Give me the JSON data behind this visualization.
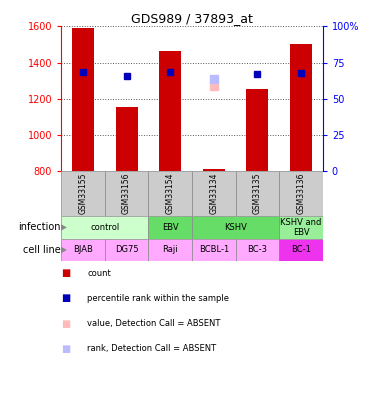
{
  "title": "GDS989 / 37893_at",
  "samples": [
    "GSM33155",
    "GSM33156",
    "GSM33154",
    "GSM33134",
    "GSM33135",
    "GSM33136"
  ],
  "counts": [
    1590,
    1155,
    1465,
    810,
    1255,
    1505
  ],
  "percentile_ranks": [
    68.5,
    65.5,
    68.5,
    null,
    67.0,
    67.5
  ],
  "absent_value": [
    null,
    null,
    null,
    1270,
    null,
    null
  ],
  "absent_rank": [
    null,
    null,
    null,
    63.5,
    null,
    null
  ],
  "cell_lines": [
    "BJAB",
    "DG75",
    "Raji",
    "BCBL-1",
    "BC-3",
    "BC-1"
  ],
  "cell_colors": [
    "#ffaaff",
    "#ffaaff",
    "#ffaaff",
    "#ffaaff",
    "#ffaaff",
    "#ee33ee"
  ],
  "inf_groups": [
    {
      "label": "control",
      "start": 0,
      "end": 2,
      "color": "#ccffcc"
    },
    {
      "label": "EBV",
      "start": 2,
      "end": 3,
      "color": "#66dd66"
    },
    {
      "label": "KSHV",
      "start": 3,
      "end": 5,
      "color": "#66dd66"
    },
    {
      "label": "KSHV and\nEBV",
      "start": 5,
      "end": 6,
      "color": "#99ee99"
    }
  ],
  "ylim_left": [
    800,
    1600
  ],
  "ylim_right": [
    0,
    100
  ],
  "yticks_left": [
    800,
    1000,
    1200,
    1400,
    1600
  ],
  "yticks_right": [
    0,
    25,
    50,
    75,
    100
  ],
  "bar_color": "#cc0000",
  "rank_color": "#0000bb",
  "absent_val_color": "#ffbbbb",
  "absent_rank_color": "#bbbbff",
  "grid_color": "#555555",
  "legend_items": [
    {
      "color": "#cc0000",
      "label": "count"
    },
    {
      "color": "#0000bb",
      "label": "percentile rank within the sample"
    },
    {
      "color": "#ffbbbb",
      "label": "value, Detection Call = ABSENT"
    },
    {
      "color": "#bbbbff",
      "label": "rank, Detection Call = ABSENT"
    }
  ]
}
